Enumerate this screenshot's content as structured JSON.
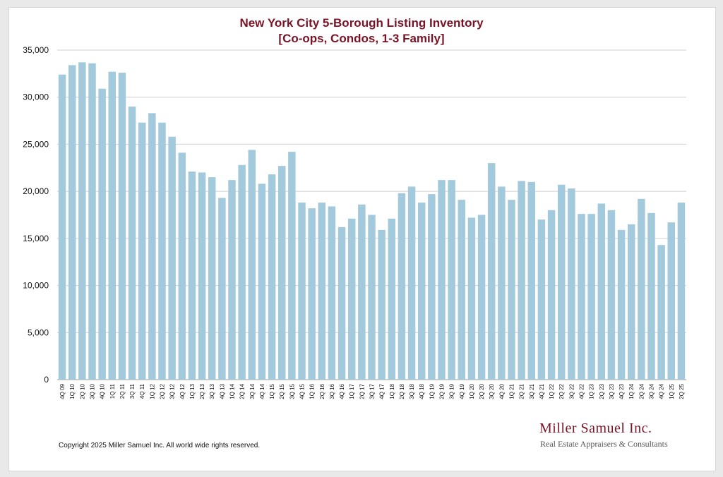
{
  "chart_data": {
    "type": "bar",
    "title": "New York City 5-Borough Listing Inventory",
    "subtitle": "[Co-ops, Condos, 1-3 Family]",
    "xlabel": "",
    "ylabel": "",
    "ylim": [
      0,
      35000
    ],
    "yticks": [
      "0",
      "5,000",
      "10,000",
      "15,000",
      "20,000",
      "25,000",
      "30,000",
      "35,000"
    ],
    "grid": true,
    "bar_color": "#a3c9dc",
    "categories": [
      "4Q 09",
      "1Q 10",
      "2Q 10",
      "3Q 10",
      "4Q 10",
      "1Q 11",
      "2Q 11",
      "3Q 11",
      "4Q 11",
      "1Q 12",
      "2Q 12",
      "3Q 12",
      "4Q 12",
      "1Q 13",
      "2Q 13",
      "3Q 13",
      "4Q 13",
      "1Q 14",
      "2Q 14",
      "3Q 14",
      "4Q 14",
      "1Q 15",
      "2Q 15",
      "3Q 15",
      "4Q 15",
      "1Q 16",
      "2Q 16",
      "3Q 16",
      "4Q 16",
      "1Q 17",
      "2Q 17",
      "3Q 17",
      "4Q 17",
      "1Q 18",
      "2Q 18",
      "3Q 18",
      "4Q 18",
      "1Q 19",
      "2Q 19",
      "3Q 19",
      "4Q 19",
      "1Q 20",
      "2Q 20",
      "3Q 20",
      "4Q 20",
      "1Q 21",
      "2Q 21",
      "3Q 21",
      "4Q 21",
      "1Q 22",
      "2Q 22",
      "3Q 22",
      "4Q 22",
      "1Q 23",
      "2Q 23",
      "3Q 23",
      "4Q 23",
      "1Q 24",
      "2Q 24",
      "3Q 24",
      "4Q 24",
      "1Q 25",
      "2Q 25"
    ],
    "values": [
      32400,
      33400,
      33700,
      33600,
      30900,
      32700,
      32600,
      29000,
      27300,
      28300,
      27300,
      25800,
      24100,
      22100,
      22000,
      21500,
      19300,
      21200,
      22800,
      24400,
      20800,
      21800,
      22700,
      24200,
      18800,
      18200,
      18800,
      18400,
      16200,
      17100,
      18600,
      17500,
      15900,
      17100,
      19800,
      20500,
      18800,
      19700,
      21200,
      21200,
      19100,
      17200,
      17500,
      23000,
      20500,
      19100,
      21100,
      21000,
      17000,
      18000,
      20700,
      20300,
      17600,
      17600,
      18700,
      18000,
      15900,
      16500,
      19200,
      17700,
      14300,
      16700,
      18800
    ]
  },
  "footer": {
    "copyright": "Copyright 2025 Miller Samuel Inc.  All world wide rights reserved.",
    "brand_name": "Miller Samuel Inc.",
    "brand_tagline": "Real Estate Appraisers & Consultants"
  }
}
